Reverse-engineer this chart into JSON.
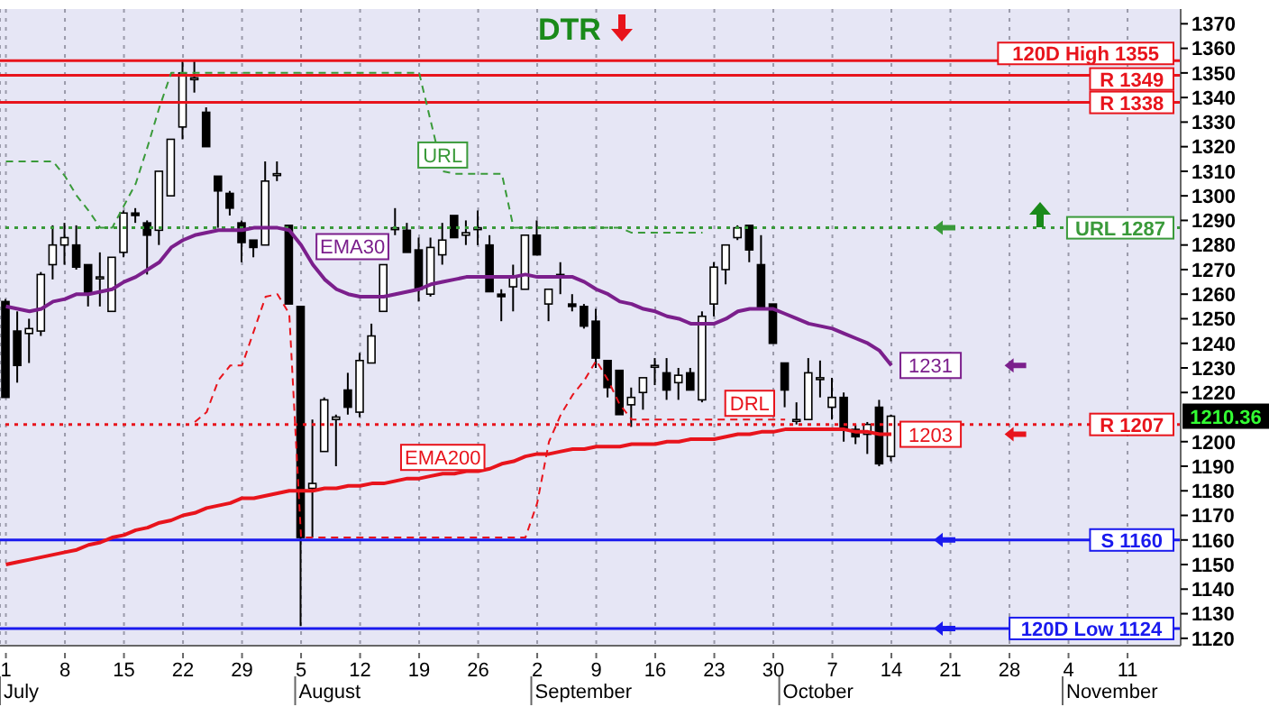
{
  "chart_data": {
    "type": "candlestick",
    "title": "DTR",
    "categories": [
      "1",
      null,
      null,
      null,
      null,
      "8",
      null,
      null,
      null,
      null,
      "15",
      null,
      null,
      null,
      null,
      "22",
      null,
      null,
      null,
      null,
      "29",
      null,
      null,
      null,
      null,
      "5",
      null,
      null,
      null,
      null,
      "12",
      null,
      null,
      null,
      null,
      "19",
      null,
      null,
      null,
      null,
      "26",
      null,
      null,
      null,
      null,
      "2",
      null,
      null,
      null,
      null,
      "9",
      null,
      null,
      null,
      null,
      "16",
      null,
      null,
      null,
      null,
      "23",
      null,
      null,
      null,
      null,
      "30",
      null,
      null,
      null,
      null,
      "7",
      null,
      null,
      null,
      null,
      "14",
      null,
      null,
      null,
      null,
      "21",
      null,
      null,
      null,
      null,
      "28",
      null,
      null,
      null,
      null,
      "4",
      null,
      null,
      null,
      null,
      "11",
      null,
      null,
      null,
      null
    ],
    "ohlc": [
      [
        1257,
        1258,
        1218,
        1218
      ],
      [
        1245,
        1253,
        1224,
        1231
      ],
      [
        1244,
        1250,
        1232,
        1246
      ],
      [
        1245,
        1269,
        1243,
        1268
      ],
      [
        1272,
        1288,
        1266,
        1280
      ],
      [
        1280,
        1289,
        1272,
        1283
      ],
      [
        1280,
        1288,
        1270,
        1271
      ],
      [
        1272,
        1272,
        1255,
        1260
      ],
      [
        1267,
        1277,
        1255,
        1267
      ],
      [
        1253,
        1275,
        1253,
        1275
      ],
      [
        1277,
        1294,
        1275,
        1293
      ],
      [
        1293,
        1295,
        1289,
        1292
      ],
      [
        1289,
        1290,
        1268,
        1284
      ],
      [
        1286,
        1310,
        1280,
        1310
      ],
      [
        1300,
        1323,
        1300,
        1323
      ],
      [
        1328,
        1355,
        1323,
        1350
      ],
      [
        1348,
        1355,
        1342,
        1348
      ],
      [
        1334,
        1336,
        1320,
        1320
      ],
      [
        1308,
        1308,
        1287,
        1302
      ],
      [
        1301,
        1302,
        1292,
        1295
      ],
      [
        1289,
        1290,
        1273,
        1281
      ],
      [
        1282,
        1282,
        1275,
        1279
      ],
      [
        1280,
        1314,
        1280,
        1306
      ],
      [
        1309,
        1314,
        1306,
        1309
      ],
      [
        1288,
        1288,
        1256,
        1256
      ],
      [
        1255,
        1255,
        1125,
        1161
      ],
      [
        1181,
        1209,
        1161,
        1183
      ],
      [
        1196,
        1218,
        1196,
        1217
      ],
      [
        1209,
        1211,
        1190,
        1210
      ],
      [
        1221,
        1228,
        1211,
        1214
      ],
      [
        1212,
        1236,
        1210,
        1233
      ],
      [
        1232,
        1248,
        1232,
        1243
      ],
      [
        1253,
        1272,
        1253,
        1272
      ],
      [
        1287,
        1295,
        1284,
        1287
      ],
      [
        1286,
        1289,
        1277,
        1277
      ],
      [
        1278,
        1283,
        1257,
        1262
      ],
      [
        1260,
        1283,
        1259,
        1279
      ],
      [
        1276,
        1289,
        1272,
        1282
      ],
      [
        1292,
        1292,
        1283,
        1283
      ],
      [
        1284,
        1290,
        1280,
        1285
      ],
      [
        1287,
        1294,
        1280,
        1287
      ],
      [
        1280,
        1284,
        1261,
        1261
      ],
      [
        1260,
        1262,
        1249,
        1259
      ],
      [
        1263,
        1272,
        1253,
        1267
      ],
      [
        1262,
        1284,
        1262,
        1284
      ],
      [
        1284,
        1290,
        1276,
        1276
      ],
      [
        1256,
        1262,
        1249,
        1262
      ],
      [
        1267,
        1273,
        1260,
        1268
      ],
      [
        1256,
        1260,
        1253,
        1255
      ],
      [
        1255,
        1256,
        1246,
        1247
      ],
      [
        1249,
        1254,
        1230,
        1234
      ],
      [
        1233,
        1233,
        1218,
        1222
      ],
      [
        1229,
        1229,
        1211,
        1211
      ],
      [
        1215,
        1222,
        1206,
        1218
      ],
      [
        1220,
        1226,
        1213,
        1226
      ],
      [
        1231,
        1234,
        1223,
        1231
      ],
      [
        1228,
        1234,
        1217,
        1221
      ],
      [
        1224,
        1230,
        1217,
        1227
      ],
      [
        1228,
        1230,
        1221,
        1221
      ],
      [
        1217,
        1253,
        1216,
        1251
      ],
      [
        1256,
        1273,
        1251,
        1271
      ],
      [
        1270,
        1280,
        1264,
        1280
      ],
      [
        1283,
        1288,
        1282,
        1287
      ],
      [
        1288,
        1288,
        1273,
        1278
      ],
      [
        1272,
        1284,
        1254,
        1254
      ],
      [
        1256,
        1256,
        1240,
        1240
      ],
      [
        1232,
        1232,
        1214,
        1221
      ],
      [
        1209,
        1216,
        1207,
        1209
      ],
      [
        1209,
        1234,
        1209,
        1228
      ],
      [
        1226,
        1233,
        1218,
        1226
      ],
      [
        1214,
        1226,
        1209,
        1218
      ],
      [
        1218,
        1220,
        1200,
        1205
      ],
      [
        1205,
        1207,
        1199,
        1202
      ],
      [
        1203,
        1208,
        1195,
        1207
      ],
      [
        1214,
        1217,
        1190,
        1191
      ],
      [
        1194,
        1211,
        1192,
        1210.36
      ],
      null,
      null,
      null,
      null,
      null,
      null,
      null,
      null,
      null,
      null,
      null,
      null,
      null,
      null,
      null,
      null,
      null,
      null,
      null,
      null,
      null,
      null,
      null,
      null
    ],
    "series": [
      {
        "name": "EMA30",
        "type": "line",
        "color": "#7b1f8c",
        "values": [
          1255,
          1254,
          1253,
          1254,
          1257,
          1258,
          1260,
          1260,
          1261,
          1262,
          1265,
          1267,
          1270,
          1273,
          1279,
          1282,
          1284,
          1285,
          1286,
          1286,
          1286,
          1287,
          1287,
          1287,
          1286,
          1280,
          1272,
          1266,
          1262,
          1260,
          1259,
          1259,
          1259,
          1260,
          1261,
          1262,
          1264,
          1265,
          1266,
          1267,
          1267,
          1267,
          1267,
          1267,
          1268,
          1267,
          1267,
          1267,
          1267,
          1265,
          1262,
          1260,
          1257,
          1256,
          1254,
          1253,
          1251,
          1250,
          1248,
          1248,
          1248,
          1250,
          1253,
          1254,
          1254,
          1254,
          1252,
          1250,
          1248,
          1247,
          1246,
          1244,
          1242,
          1240,
          1237,
          1231,
          null,
          null,
          null,
          null,
          null,
          null,
          null,
          null,
          null,
          null,
          null,
          null,
          null,
          null,
          null,
          null,
          null,
          null,
          null,
          null,
          null,
          null,
          null,
          null
        ],
        "value_labels": [
          null,
          null,
          null,
          null,
          null,
          null,
          null,
          null,
          null,
          null,
          null,
          null,
          null,
          null,
          null,
          null,
          null,
          null,
          null,
          null,
          null,
          null,
          null,
          null,
          null,
          null,
          null,
          null,
          null,
          null,
          null,
          null,
          null,
          null,
          null,
          null,
          null,
          null,
          null,
          null,
          null,
          null,
          null,
          null,
          null,
          null,
          null,
          null,
          null,
          null,
          null,
          null,
          null,
          null,
          null,
          null,
          null,
          null,
          null,
          null,
          null,
          null,
          null,
          null,
          null,
          null,
          null,
          null,
          null,
          null,
          null,
          null,
          null,
          null,
          null,
          "1231",
          null,
          null,
          null,
          null,
          null,
          null,
          null,
          null,
          null,
          null,
          null,
          null,
          null,
          null,
          null,
          null,
          null,
          null,
          null,
          null,
          null,
          null,
          null,
          null
        ]
      },
      {
        "name": "EMA200",
        "type": "line",
        "color": "#e8141c",
        "values": [
          1150,
          1151,
          1152,
          1153,
          1154,
          1155,
          1156,
          1158,
          1159,
          1161,
          1162,
          1164,
          1165,
          1167,
          1168,
          1170,
          1171,
          1173,
          1174,
          1175,
          1177,
          1177,
          1178,
          1179,
          1180,
          1180,
          1180,
          1181,
          1181,
          1182,
          1182,
          1183,
          1183,
          1184,
          1185,
          1185,
          1186,
          1187,
          1187,
          1188,
          1188,
          1189,
          1191,
          1192,
          1194,
          1195,
          1195,
          1196,
          1197,
          1197,
          1198,
          1198,
          1198,
          1199,
          1199,
          1199,
          1200,
          1200,
          1201,
          1201,
          1201,
          1202,
          1203,
          1203,
          1204,
          1204,
          1205,
          1205,
          1205,
          1205,
          1205,
          1205,
          1204,
          1204,
          1203,
          1203,
          null,
          null,
          null,
          null,
          null,
          null,
          null,
          null,
          null,
          null,
          null,
          null,
          null,
          null,
          null,
          null,
          null,
          null,
          null,
          null,
          null,
          null,
          null,
          null
        ],
        "value_labels": [
          null,
          null,
          null,
          null,
          null,
          null,
          null,
          null,
          null,
          null,
          null,
          null,
          null,
          null,
          null,
          null,
          null,
          null,
          null,
          null,
          null,
          null,
          null,
          null,
          null,
          null,
          null,
          null,
          null,
          null,
          null,
          null,
          null,
          null,
          null,
          null,
          null,
          null,
          null,
          null,
          null,
          null,
          null,
          null,
          null,
          null,
          null,
          null,
          null,
          null,
          null,
          null,
          null,
          null,
          null,
          null,
          null,
          null,
          null,
          null,
          null,
          null,
          null,
          null,
          null,
          null,
          null,
          null,
          null,
          null,
          null,
          null,
          null,
          null,
          null,
          "1203",
          null,
          null,
          null,
          null,
          null,
          null,
          null,
          null,
          null,
          null,
          null,
          null,
          null,
          null,
          null,
          null,
          null,
          null,
          null,
          null,
          null,
          null,
          null,
          null
        ]
      },
      {
        "name": "URL",
        "type": "line",
        "line_style": "dashed",
        "color": "#3a9a3a",
        "values": [
          1314,
          1314,
          1314,
          1314,
          1314,
          1308,
          1300,
          1294,
          1287,
          1287,
          1296,
          1305,
          1320,
          1336,
          1350,
          1350,
          1350,
          1350,
          1350,
          1350,
          1350,
          1350,
          1350,
          1350,
          1350,
          1350,
          1350,
          1350,
          1350,
          1350,
          1350,
          1350,
          1350,
          1350,
          1350,
          1350,
          1330,
          1310,
          1309,
          1309,
          1309,
          1309,
          1309,
          1287,
          1287,
          1287,
          1287,
          1287,
          1287,
          1287,
          1287,
          1287,
          1287,
          1285,
          1285,
          1285,
          1285,
          1285,
          1285,
          1285,
          null,
          null,
          null,
          null,
          null,
          null,
          null,
          null,
          null,
          null,
          null,
          null,
          null,
          null,
          null,
          null,
          null,
          null,
          null,
          null,
          null,
          null,
          null,
          null,
          null,
          null,
          null,
          null,
          null,
          null,
          null,
          null,
          null,
          null,
          null,
          null,
          null,
          null,
          null,
          null
        ]
      },
      {
        "name": "DRL",
        "type": "line",
        "line_style": "dashed",
        "color": "#e8141c",
        "values": [
          null,
          null,
          null,
          null,
          null,
          null,
          null,
          null,
          null,
          null,
          null,
          null,
          null,
          null,
          null,
          null,
          1208,
          1212,
          1225,
          1231,
          1231,
          1245,
          1259,
          1260,
          1252,
          1161,
          1161,
          1161,
          1161,
          1161,
          1161,
          1161,
          1161,
          1161,
          1161,
          1161,
          1161,
          1161,
          1161,
          1161,
          1161,
          1161,
          1161,
          1161,
          1161,
          1175,
          1200,
          1211,
          1219,
          1225,
          1233,
          1225,
          1215,
          1209,
          1209,
          1209,
          1209,
          1209,
          1209,
          1209,
          1209,
          1209,
          1209,
          1209,
          1209,
          1209,
          1209,
          null,
          null,
          null,
          null,
          null,
          null,
          null,
          null,
          null,
          null,
          null,
          null,
          null,
          null,
          null,
          null,
          null,
          null,
          null,
          null,
          null,
          null,
          null,
          null,
          null,
          null,
          null,
          null,
          null,
          null,
          null,
          null,
          null
        ]
      }
    ],
    "ylim": [
      1117,
      1376
    ],
    "yticks": [
      1120,
      1130,
      1140,
      1150,
      1160,
      1170,
      1180,
      1190,
      1200,
      1220,
      1230,
      1240,
      1250,
      1260,
      1270,
      1280,
      1290,
      1300,
      1310,
      1320,
      1330,
      1340,
      1350,
      1360,
      1370
    ],
    "grid": "x",
    "ref_lines": [
      {
        "axis": "y",
        "value": 1355,
        "label": "120D High 1355",
        "color": "#e8141c"
      },
      {
        "axis": "y",
        "value": 1349,
        "label": "R 1349",
        "color": "#e8141c"
      },
      {
        "axis": "y",
        "value": 1338,
        "label": "R 1338",
        "color": "#e8141c"
      },
      {
        "axis": "y",
        "value": 1287,
        "label": "URL 1287",
        "color": "#3a9a3a",
        "line_style": "dotted"
      },
      {
        "axis": "y",
        "value": 1207,
        "label": "R 1207",
        "color": "#e8141c",
        "line_style": "dotted"
      },
      {
        "axis": "y",
        "value": 1160,
        "label": "S 1160",
        "color": "#1a1aee"
      },
      {
        "axis": "y",
        "value": 1124,
        "label": "120D Low 1124",
        "color": "#1a1aee"
      }
    ],
    "annotations": [
      "July",
      "August",
      "September",
      "October",
      "November",
      "1210.36"
    ]
  }
}
